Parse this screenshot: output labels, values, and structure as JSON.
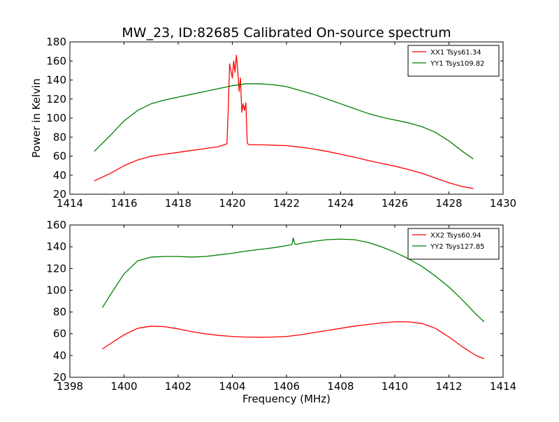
{
  "figure": {
    "title": "MW_23, ID:82685 Calibrated On-source spectrum"
  },
  "colors": {
    "xx": "#ff0000",
    "yy": "#008000",
    "axis": "#000000",
    "background": "#ffffff"
  },
  "chart_data": [
    {
      "type": "line",
      "title": "MW_23, ID:82685 Calibrated On-source spectrum",
      "xlabel": "",
      "ylabel": "Power in Kelvin",
      "xlim": [
        1414,
        1430
      ],
      "ylim": [
        20,
        180
      ],
      "xticks": [
        1414,
        1416,
        1418,
        1420,
        1422,
        1424,
        1426,
        1428,
        1430
      ],
      "yticks": [
        20,
        40,
        60,
        80,
        100,
        120,
        140,
        160,
        180
      ],
      "grid": false,
      "legend": "top-right",
      "series": [
        {
          "name": "XX1 Tsys61.34",
          "color": "#ff0000",
          "x": [
            1414.9,
            1415.5,
            1416.0,
            1416.5,
            1417.0,
            1417.5,
            1418.0,
            1418.5,
            1419.0,
            1419.5,
            1419.8,
            1419.85,
            1419.9,
            1420.0,
            1420.05,
            1420.1,
            1420.15,
            1420.2,
            1420.25,
            1420.3,
            1420.35,
            1420.4,
            1420.45,
            1420.5,
            1420.55,
            1420.6,
            1420.7,
            1421.0,
            1421.5,
            1422.0,
            1422.5,
            1423.0,
            1423.5,
            1424.0,
            1424.5,
            1425.0,
            1425.5,
            1426.0,
            1426.5,
            1427.0,
            1427.5,
            1428.0,
            1428.5,
            1428.9
          ],
          "values": [
            34,
            42,
            50,
            56,
            60,
            62,
            64,
            66,
            68,
            70,
            73,
            110,
            157,
            142,
            160,
            148,
            166,
            150,
            128,
            142,
            106,
            115,
            108,
            116,
            74,
            72,
            72,
            72,
            71.5,
            71,
            69.5,
            67.5,
            65,
            62,
            59,
            55.5,
            52.5,
            49.5,
            46,
            42,
            37,
            32,
            28,
            26
          ]
        },
        {
          "name": "YY1 Tsys109.82",
          "color": "#008000",
          "x": [
            1414.9,
            1415.5,
            1416.0,
            1416.5,
            1417.0,
            1417.5,
            1418.0,
            1418.5,
            1419.0,
            1419.5,
            1420.0,
            1420.5,
            1421.0,
            1421.5,
            1422.0,
            1422.5,
            1423.0,
            1423.5,
            1424.0,
            1424.5,
            1425.0,
            1425.5,
            1426.0,
            1426.5,
            1427.0,
            1427.5,
            1428.0,
            1428.5,
            1428.9
          ],
          "values": [
            65,
            82,
            97,
            108,
            115,
            119,
            122,
            125,
            128,
            131,
            134,
            136,
            136,
            135,
            133,
            129,
            125,
            120,
            115,
            110,
            105,
            101,
            98,
            95,
            91,
            85,
            76,
            65,
            57
          ]
        }
      ]
    },
    {
      "type": "line",
      "title": "",
      "xlabel": "Frequency (MHz)",
      "ylabel": "",
      "xlim": [
        1398,
        1414
      ],
      "ylim": [
        20,
        160
      ],
      "xticks": [
        1398,
        1400,
        1402,
        1404,
        1406,
        1408,
        1410,
        1412,
        1414
      ],
      "yticks": [
        20,
        40,
        60,
        80,
        100,
        120,
        140,
        160
      ],
      "grid": false,
      "legend": "top-right",
      "series": [
        {
          "name": "XX2 Tsys60.94",
          "color": "#ff0000",
          "x": [
            1399.2,
            1399.5,
            1400.0,
            1400.5,
            1401.0,
            1401.5,
            1402.0,
            1402.5,
            1403.0,
            1403.5,
            1404.0,
            1404.5,
            1405.0,
            1405.5,
            1406.0,
            1406.5,
            1407.0,
            1407.5,
            1408.0,
            1408.5,
            1409.0,
            1409.5,
            1410.0,
            1410.5,
            1411.0,
            1411.5,
            1412.0,
            1412.5,
            1413.0,
            1413.3
          ],
          "values": [
            46,
            51,
            59,
            65,
            67,
            66.5,
            64.5,
            62,
            60,
            58.5,
            57.5,
            57,
            56.8,
            57,
            57.5,
            59,
            61,
            63,
            65,
            67,
            68.5,
            70,
            71,
            71,
            69.5,
            65,
            57,
            48,
            40,
            37
          ]
        },
        {
          "name": "YY2 Tsys127.85",
          "color": "#008000",
          "x": [
            1399.2,
            1399.5,
            1400.0,
            1400.5,
            1401.0,
            1401.5,
            1402.0,
            1402.5,
            1403.0,
            1403.5,
            1404.0,
            1404.5,
            1405.0,
            1405.5,
            1406.0,
            1406.2,
            1406.25,
            1406.3,
            1406.35,
            1406.5,
            1407.0,
            1407.5,
            1408.0,
            1408.5,
            1409.0,
            1409.5,
            1410.0,
            1410.5,
            1411.0,
            1411.5,
            1412.0,
            1412.5,
            1413.0,
            1413.3
          ],
          "values": [
            84,
            96,
            115,
            127,
            130.5,
            131,
            131,
            130.5,
            131,
            132.5,
            134,
            136,
            137.5,
            139,
            141,
            142,
            148,
            143,
            142,
            143,
            145,
            146.5,
            147,
            146.5,
            144,
            140,
            135,
            129,
            122,
            113,
            103,
            91,
            78,
            71
          ]
        }
      ]
    }
  ]
}
